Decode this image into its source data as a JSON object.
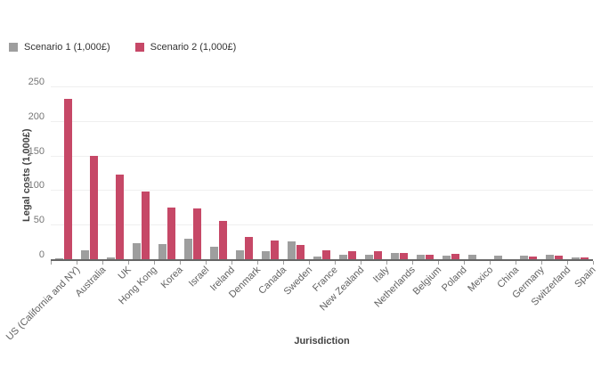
{
  "legend": {
    "items": [
      {
        "label": "Scenario 1 (1,000£)",
        "color": "#9e9e9e"
      },
      {
        "label": "Scenario 2 (1,000£)",
        "color": "#c64867"
      }
    ]
  },
  "chart_data": {
    "type": "bar",
    "title": "",
    "xlabel": "Jurisdiction",
    "ylabel": "Legal costs (1,000£)",
    "ylim": [
      0,
      250
    ],
    "yticks": [
      0,
      50,
      100,
      150,
      200,
      250
    ],
    "grid": true,
    "legend_position": "top-left",
    "categories": [
      "US (California and NY)",
      "Australia",
      "UK",
      "Hong Kong",
      "Korea",
      "Israel",
      "Ireland",
      "Denmark",
      "Canada",
      "Sweden",
      "France",
      "New Zealand",
      "Italy",
      "Netherlands",
      "Belgium",
      "Poland",
      "Mexico",
      "China",
      "Germany",
      "Switzerland",
      "Spain"
    ],
    "series": [
      {
        "name": "Scenario 1 (1,000£)",
        "color": "#9e9e9e",
        "values": [
          1,
          13,
          3,
          23,
          22,
          30,
          18,
          13,
          11,
          26,
          4,
          7,
          6,
          9,
          6,
          5,
          6,
          5,
          5,
          6,
          2
        ]
      },
      {
        "name": "Scenario 2 (1,000£)",
        "color": "#c64867",
        "values": [
          232,
          150,
          122,
          98,
          75,
          73,
          55,
          32,
          27,
          20,
          13,
          12,
          11,
          9,
          7,
          8,
          0,
          0,
          4,
          5,
          3
        ]
      }
    ],
    "colors": {
      "axis_line": "#666666",
      "gridline": "#efefef",
      "tick_text": "#757575",
      "category_text": "#616161"
    }
  }
}
